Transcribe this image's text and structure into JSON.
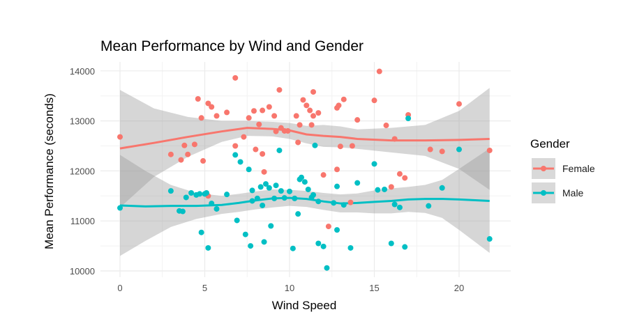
{
  "chart_data": {
    "type": "scatter",
    "title": "Mean Performance by Wind and Gender",
    "xlabel": "Wind Speed",
    "ylabel": "Mean Performance (seconds)",
    "xlim": [
      -0.8,
      22.5
    ],
    "ylim": [
      9950,
      14180
    ],
    "x_ticks": [
      0,
      5,
      10,
      15,
      20
    ],
    "y_ticks": [
      10000,
      11000,
      12000,
      13000,
      14000
    ],
    "x_tick_labels": [
      "0",
      "5",
      "10",
      "15",
      "20"
    ],
    "y_tick_labels": [
      "10000",
      "11000",
      "12000",
      "13000",
      "14000"
    ],
    "grid": true,
    "legend": {
      "title": "Gender",
      "placement": "right"
    },
    "series": [
      {
        "name": "Female",
        "color": "#F8766D",
        "points": [
          [
            0,
            12680
          ],
          [
            3,
            12330
          ],
          [
            3.6,
            12220
          ],
          [
            3.8,
            12510
          ],
          [
            4,
            12330
          ],
          [
            4.4,
            12530
          ],
          [
            4.6,
            13440
          ],
          [
            4.8,
            13060
          ],
          [
            4.9,
            12200
          ],
          [
            5.2,
            13350
          ],
          [
            5.4,
            13280
          ],
          [
            5.2,
            11500
          ],
          [
            5.7,
            13100
          ],
          [
            6.3,
            13170
          ],
          [
            6.8,
            13860
          ],
          [
            6.8,
            12500
          ],
          [
            7.3,
            12680
          ],
          [
            7.6,
            13060
          ],
          [
            7.9,
            13200
          ],
          [
            8,
            12430
          ],
          [
            8.2,
            12930
          ],
          [
            8.4,
            12340
          ],
          [
            8.4,
            13210
          ],
          [
            8.5,
            11980
          ],
          [
            8.8,
            13280
          ],
          [
            9.1,
            13100
          ],
          [
            9.2,
            12790
          ],
          [
            9.4,
            13620
          ],
          [
            9.5,
            12860
          ],
          [
            9.7,
            12800
          ],
          [
            9.9,
            12800
          ],
          [
            10.4,
            13100
          ],
          [
            10.5,
            12570
          ],
          [
            10.6,
            12920
          ],
          [
            10.8,
            13420
          ],
          [
            11,
            13310
          ],
          [
            11.2,
            13210
          ],
          [
            11.3,
            12920
          ],
          [
            11.4,
            13580
          ],
          [
            11.4,
            13100
          ],
          [
            11.7,
            13160
          ],
          [
            12,
            11920
          ],
          [
            12.3,
            10890
          ],
          [
            12.8,
            13260
          ],
          [
            12.8,
            12030
          ],
          [
            12.9,
            13310
          ],
          [
            13,
            12490
          ],
          [
            13.2,
            13430
          ],
          [
            13.6,
            11370
          ],
          [
            13.7,
            12500
          ],
          [
            14,
            13020
          ],
          [
            15,
            13410
          ],
          [
            15.3,
            13990
          ],
          [
            15.7,
            12910
          ],
          [
            16,
            11680
          ],
          [
            16.2,
            12640
          ],
          [
            16.5,
            11940
          ],
          [
            16.8,
            11860
          ],
          [
            17,
            13120
          ],
          [
            18.3,
            12430
          ],
          [
            19,
            12390
          ],
          [
            20,
            13340
          ],
          [
            21.8,
            12410
          ]
        ],
        "trend": [
          [
            0,
            12450
          ],
          [
            2,
            12560
          ],
          [
            4,
            12680
          ],
          [
            6,
            12790
          ],
          [
            7.5,
            12860
          ],
          [
            9,
            12840
          ],
          [
            10,
            12810
          ],
          [
            11,
            12730
          ],
          [
            12,
            12700
          ],
          [
            13,
            12680
          ],
          [
            14,
            12640
          ],
          [
            16,
            12610
          ],
          [
            18,
            12610
          ],
          [
            20,
            12620
          ],
          [
            21.8,
            12640
          ]
        ],
        "band_upper": [
          [
            0,
            13620
          ],
          [
            2,
            13250
          ],
          [
            4,
            13080
          ],
          [
            6,
            13000
          ],
          [
            7.5,
            13000
          ],
          [
            9,
            12980
          ],
          [
            10,
            12960
          ],
          [
            11,
            12900
          ],
          [
            12,
            12920
          ],
          [
            13,
            12890
          ],
          [
            14,
            12830
          ],
          [
            16,
            12860
          ],
          [
            18,
            12920
          ],
          [
            20,
            13200
          ],
          [
            21.8,
            13660
          ]
        ],
        "band_lower": [
          [
            0,
            11270
          ],
          [
            2,
            11880
          ],
          [
            4,
            12280
          ],
          [
            6,
            12580
          ],
          [
            7.5,
            12700
          ],
          [
            9,
            12690
          ],
          [
            10,
            12640
          ],
          [
            11,
            12550
          ],
          [
            12,
            12480
          ],
          [
            13,
            12470
          ],
          [
            14,
            12440
          ],
          [
            16,
            12370
          ],
          [
            18,
            12300
          ],
          [
            20,
            12040
          ],
          [
            21.8,
            11620
          ]
        ]
      },
      {
        "name": "Male",
        "color": "#00BFC4",
        "points": [
          [
            0,
            11260
          ],
          [
            3,
            11600
          ],
          [
            3.5,
            11200
          ],
          [
            3.7,
            11190
          ],
          [
            3.9,
            11470
          ],
          [
            4.2,
            11560
          ],
          [
            4.5,
            11520
          ],
          [
            4.7,
            11540
          ],
          [
            4.8,
            10770
          ],
          [
            5,
            11540
          ],
          [
            5.1,
            11560
          ],
          [
            5.2,
            10460
          ],
          [
            5.4,
            11350
          ],
          [
            5.7,
            11240
          ],
          [
            6.3,
            11530
          ],
          [
            6.8,
            12320
          ],
          [
            6.9,
            11010
          ],
          [
            7.1,
            12180
          ],
          [
            7.4,
            10730
          ],
          [
            7.6,
            12030
          ],
          [
            7.7,
            10500
          ],
          [
            7.8,
            11400
          ],
          [
            7.8,
            11610
          ],
          [
            8.1,
            11450
          ],
          [
            8.3,
            11680
          ],
          [
            8.4,
            11310
          ],
          [
            8.5,
            10580
          ],
          [
            8.6,
            11740
          ],
          [
            8.8,
            11660
          ],
          [
            8.9,
            10900
          ],
          [
            9.1,
            11450
          ],
          [
            9.2,
            11710
          ],
          [
            9.4,
            12410
          ],
          [
            9.5,
            11600
          ],
          [
            9.7,
            11460
          ],
          [
            10,
            11590
          ],
          [
            10.2,
            10450
          ],
          [
            10.3,
            11450
          ],
          [
            10.5,
            11140
          ],
          [
            10.6,
            11830
          ],
          [
            10.7,
            11870
          ],
          [
            10.9,
            11780
          ],
          [
            11.1,
            11630
          ],
          [
            11.3,
            11470
          ],
          [
            11.4,
            11520
          ],
          [
            11.5,
            12510
          ],
          [
            11.7,
            10550
          ],
          [
            11.7,
            11390
          ],
          [
            12,
            10490
          ],
          [
            12.2,
            10060
          ],
          [
            12.6,
            11360
          ],
          [
            12.8,
            11690
          ],
          [
            12.8,
            10820
          ],
          [
            13.2,
            11320
          ],
          [
            13.6,
            10460
          ],
          [
            14,
            11760
          ],
          [
            15,
            12140
          ],
          [
            15.2,
            11620
          ],
          [
            15.6,
            11630
          ],
          [
            16,
            10550
          ],
          [
            16.2,
            11330
          ],
          [
            16.5,
            11270
          ],
          [
            16.8,
            10480
          ],
          [
            17,
            13050
          ],
          [
            18.2,
            11300
          ],
          [
            19,
            11660
          ],
          [
            20,
            12430
          ],
          [
            21.8,
            10640
          ]
        ],
        "trend": [
          [
            0,
            11310
          ],
          [
            1.5,
            11290
          ],
          [
            3,
            11300
          ],
          [
            4.5,
            11300
          ],
          [
            6,
            11320
          ],
          [
            7,
            11360
          ],
          [
            8,
            11410
          ],
          [
            9,
            11450
          ],
          [
            10,
            11460
          ],
          [
            11,
            11440
          ],
          [
            12,
            11390
          ],
          [
            13,
            11350
          ],
          [
            14,
            11360
          ],
          [
            15,
            11380
          ],
          [
            16,
            11400
          ],
          [
            17,
            11430
          ],
          [
            18,
            11440
          ],
          [
            19,
            11440
          ],
          [
            20,
            11430
          ],
          [
            21.8,
            11400
          ]
        ],
        "band_upper": [
          [
            0,
            12320
          ],
          [
            1.5,
            12000
          ],
          [
            3,
            11720
          ],
          [
            4.5,
            11560
          ],
          [
            6,
            11500
          ],
          [
            7,
            11540
          ],
          [
            8,
            11590
          ],
          [
            9,
            11630
          ],
          [
            10,
            11620
          ],
          [
            11,
            11600
          ],
          [
            12,
            11560
          ],
          [
            13,
            11530
          ],
          [
            14,
            11550
          ],
          [
            15,
            11610
          ],
          [
            16,
            11650
          ],
          [
            17,
            11680
          ],
          [
            18,
            11720
          ],
          [
            19,
            11820
          ],
          [
            20,
            12040
          ],
          [
            21.8,
            12450
          ]
        ],
        "band_lower": [
          [
            0,
            10300
          ],
          [
            1.5,
            10600
          ],
          [
            3,
            10880
          ],
          [
            4.5,
            11040
          ],
          [
            6,
            11140
          ],
          [
            7,
            11180
          ],
          [
            8,
            11230
          ],
          [
            9,
            11270
          ],
          [
            10,
            11300
          ],
          [
            11,
            11280
          ],
          [
            12,
            11220
          ],
          [
            13,
            11170
          ],
          [
            14,
            11170
          ],
          [
            15,
            11150
          ],
          [
            16,
            11150
          ],
          [
            17,
            11180
          ],
          [
            18,
            11160
          ],
          [
            19,
            11060
          ],
          [
            20,
            10820
          ],
          [
            21.8,
            10360
          ]
        ]
      }
    ]
  }
}
